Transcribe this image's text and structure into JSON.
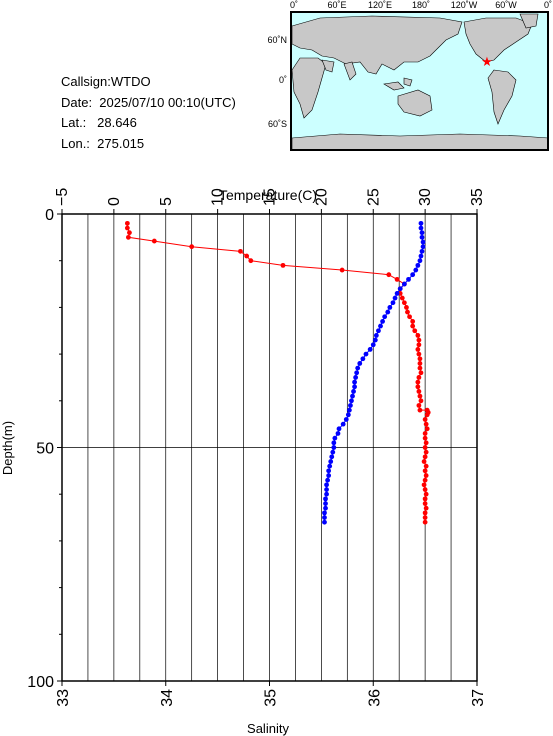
{
  "info": {
    "callsign": "Callsign:WTDO",
    "date": "Date:  2025/07/10 00:10(UTC)",
    "lat": "Lat.:   28.646",
    "lon": "Lon.:  275.015"
  },
  "map": {
    "top_labels": [
      "0˚",
      "60˚E",
      "120˚E",
      "180˚",
      "120˚W",
      "60˚W",
      "0˚"
    ],
    "left_labels": [
      "60˚N",
      "0˚",
      "60˚S"
    ],
    "station_marker": "red-star",
    "ocean_color": "#ccffff",
    "land_color": "#c8c8c8",
    "marker_color": "#ff0000"
  },
  "chart_data": {
    "type": "line",
    "top_axis": {
      "label": "Temperature(C)",
      "range": [
        -5,
        35
      ],
      "ticks": [
        "−5",
        "0",
        "5",
        "10",
        "15",
        "20",
        "25",
        "30",
        "35"
      ]
    },
    "bottom_axis": {
      "label": "Salinity",
      "range": [
        33,
        37
      ],
      "ticks": [
        "33",
        "34",
        "35",
        "36",
        "37"
      ]
    },
    "left_axis": {
      "label": "Depth(m)",
      "range": [
        0,
        100
      ],
      "reversed": true,
      "ticks": [
        "0",
        "50",
        "100"
      ]
    },
    "grid": true,
    "series": [
      {
        "axis": "top",
        "color": "#ff0000",
        "points": [
          {
            "x": 1.3,
            "y": 2
          },
          {
            "x": 1.3,
            "y": 3
          },
          {
            "x": 1.5,
            "y": 4
          },
          {
            "x": 1.4,
            "y": 5
          },
          {
            "x": 3.9,
            "y": 5.8
          },
          {
            "x": 7.5,
            "y": 7
          },
          {
            "x": 12.2,
            "y": 8
          },
          {
            "x": 12.8,
            "y": 9
          },
          {
            "x": 13.2,
            "y": 10
          },
          {
            "x": 16.3,
            "y": 11
          },
          {
            "x": 22.0,
            "y": 12
          },
          {
            "x": 26.5,
            "y": 13
          },
          {
            "x": 27.3,
            "y": 14
          },
          {
            "x": 28.0,
            "y": 15
          },
          {
            "x": 27.6,
            "y": 16
          },
          {
            "x": 27.6,
            "y": 17
          },
          {
            "x": 27.8,
            "y": 18
          },
          {
            "x": 28.0,
            "y": 19
          },
          {
            "x": 28.2,
            "y": 20
          },
          {
            "x": 28.3,
            "y": 21
          },
          {
            "x": 28.5,
            "y": 22
          },
          {
            "x": 28.8,
            "y": 23
          },
          {
            "x": 28.8,
            "y": 24
          },
          {
            "x": 29.0,
            "y": 25
          },
          {
            "x": 29.3,
            "y": 26
          },
          {
            "x": 29.4,
            "y": 27
          },
          {
            "x": 29.4,
            "y": 28
          },
          {
            "x": 29.3,
            "y": 29
          },
          {
            "x": 29.4,
            "y": 30
          },
          {
            "x": 29.5,
            "y": 31
          },
          {
            "x": 29.5,
            "y": 32
          },
          {
            "x": 29.5,
            "y": 33
          },
          {
            "x": 29.6,
            "y": 34
          },
          {
            "x": 29.4,
            "y": 35
          },
          {
            "x": 29.3,
            "y": 36
          },
          {
            "x": 29.3,
            "y": 37
          },
          {
            "x": 29.4,
            "y": 38
          },
          {
            "x": 29.5,
            "y": 39
          },
          {
            "x": 29.6,
            "y": 40
          },
          {
            "x": 29.4,
            "y": 41
          },
          {
            "x": 29.5,
            "y": 42
          },
          {
            "x": 30.2,
            "y": 42
          },
          {
            "x": 30.3,
            "y": 42.5
          },
          {
            "x": 30.2,
            "y": 43
          },
          {
            "x": 30.0,
            "y": 44
          },
          {
            "x": 30.1,
            "y": 45
          },
          {
            "x": 30.2,
            "y": 46
          },
          {
            "x": 30.0,
            "y": 47
          },
          {
            "x": 30.0,
            "y": 48
          },
          {
            "x": 30.1,
            "y": 49
          },
          {
            "x": 30.0,
            "y": 50
          },
          {
            "x": 30.1,
            "y": 51
          },
          {
            "x": 30.0,
            "y": 52
          },
          {
            "x": 29.9,
            "y": 53
          },
          {
            "x": 30.1,
            "y": 54
          },
          {
            "x": 30.0,
            "y": 55
          },
          {
            "x": 30.1,
            "y": 56
          },
          {
            "x": 30.0,
            "y": 57
          },
          {
            "x": 29.9,
            "y": 58
          },
          {
            "x": 30.0,
            "y": 59
          },
          {
            "x": 30.1,
            "y": 60
          },
          {
            "x": 30.0,
            "y": 61
          },
          {
            "x": 30.0,
            "y": 62
          },
          {
            "x": 30.1,
            "y": 63
          },
          {
            "x": 30.0,
            "y": 64
          },
          {
            "x": 30.0,
            "y": 65
          },
          {
            "x": 30.0,
            "y": 66
          }
        ]
      },
      {
        "axis": "bottom",
        "color": "#0000ff",
        "points": [
          {
            "x": 36.46,
            "y": 2
          },
          {
            "x": 36.46,
            "y": 3
          },
          {
            "x": 36.47,
            "y": 4
          },
          {
            "x": 36.47,
            "y": 5
          },
          {
            "x": 36.48,
            "y": 6
          },
          {
            "x": 36.48,
            "y": 7
          },
          {
            "x": 36.47,
            "y": 8
          },
          {
            "x": 36.46,
            "y": 9
          },
          {
            "x": 36.45,
            "y": 10
          },
          {
            "x": 36.43,
            "y": 11
          },
          {
            "x": 36.41,
            "y": 12
          },
          {
            "x": 36.38,
            "y": 13
          },
          {
            "x": 36.34,
            "y": 14
          },
          {
            "x": 36.3,
            "y": 15
          },
          {
            "x": 36.26,
            "y": 16
          },
          {
            "x": 36.23,
            "y": 17
          },
          {
            "x": 36.21,
            "y": 18
          },
          {
            "x": 36.19,
            "y": 19
          },
          {
            "x": 36.16,
            "y": 20
          },
          {
            "x": 36.14,
            "y": 21
          },
          {
            "x": 36.11,
            "y": 22
          },
          {
            "x": 36.09,
            "y": 23
          },
          {
            "x": 36.07,
            "y": 24
          },
          {
            "x": 36.05,
            "y": 25
          },
          {
            "x": 36.03,
            "y": 26
          },
          {
            "x": 36.02,
            "y": 27
          },
          {
            "x": 36.0,
            "y": 28
          },
          {
            "x": 35.97,
            "y": 29
          },
          {
            "x": 35.93,
            "y": 30
          },
          {
            "x": 35.9,
            "y": 31
          },
          {
            "x": 35.87,
            "y": 32
          },
          {
            "x": 35.85,
            "y": 33
          },
          {
            "x": 35.84,
            "y": 34
          },
          {
            "x": 35.83,
            "y": 35
          },
          {
            "x": 35.82,
            "y": 36
          },
          {
            "x": 35.82,
            "y": 37
          },
          {
            "x": 35.81,
            "y": 38
          },
          {
            "x": 35.8,
            "y": 39
          },
          {
            "x": 35.79,
            "y": 40
          },
          {
            "x": 35.78,
            "y": 41
          },
          {
            "x": 35.77,
            "y": 42
          },
          {
            "x": 35.76,
            "y": 43
          },
          {
            "x": 35.74,
            "y": 44
          },
          {
            "x": 35.71,
            "y": 45
          },
          {
            "x": 35.67,
            "y": 46
          },
          {
            "x": 35.66,
            "y": 47
          },
          {
            "x": 35.63,
            "y": 48
          },
          {
            "x": 35.62,
            "y": 49
          },
          {
            "x": 35.62,
            "y": 50
          },
          {
            "x": 35.61,
            "y": 51
          },
          {
            "x": 35.6,
            "y": 52
          },
          {
            "x": 35.59,
            "y": 53
          },
          {
            "x": 35.58,
            "y": 54
          },
          {
            "x": 35.57,
            "y": 55
          },
          {
            "x": 35.57,
            "y": 56
          },
          {
            "x": 35.56,
            "y": 57
          },
          {
            "x": 35.55,
            "y": 58
          },
          {
            "x": 35.55,
            "y": 59
          },
          {
            "x": 35.55,
            "y": 60
          },
          {
            "x": 35.54,
            "y": 61
          },
          {
            "x": 35.54,
            "y": 62
          },
          {
            "x": 35.54,
            "y": 63
          },
          {
            "x": 35.53,
            "y": 64
          },
          {
            "x": 35.53,
            "y": 65
          },
          {
            "x": 35.53,
            "y": 66
          }
        ]
      }
    ]
  }
}
